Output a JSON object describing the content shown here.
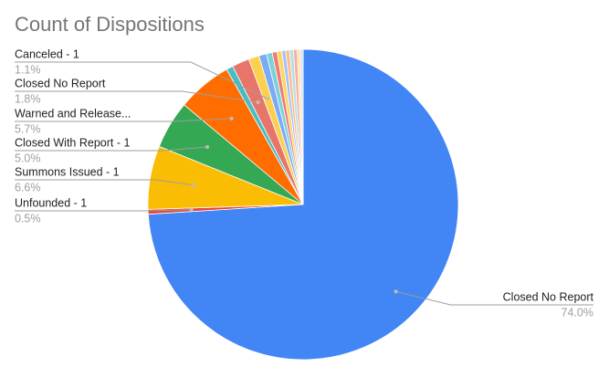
{
  "chart_data": {
    "type": "pie",
    "title": "Count of Dispositions",
    "categories": [
      "Closed No Report",
      "Unfounded - 1",
      "Summons Issued - 1",
      "Closed With Report - 1",
      "Warned and Release...",
      null,
      "Closed No Report",
      "Canceled - 1",
      null,
      null,
      null,
      null,
      null,
      null,
      null,
      null,
      null,
      null
    ],
    "values": [
      74.0,
      0.5,
      6.6,
      5.0,
      5.7,
      0.7,
      1.8,
      1.1,
      0.8,
      0.6,
      0.5,
      0.5,
      0.4,
      0.4,
      0.4,
      0.4,
      0.3,
      0.3
    ],
    "value_labels": [
      "74.0%",
      "0.5%",
      "6.6%",
      "5.0%",
      "5.7%",
      null,
      "1.8%",
      "1.1%",
      null,
      null,
      null,
      null,
      null,
      null,
      null,
      null,
      null,
      null
    ],
    "colors": [
      "#4285f4",
      "#ea4335",
      "#fbbc04",
      "#34a853",
      "#ff6d01",
      "#46bdc6",
      "#e8756a",
      "#fcd04f",
      "#7baaf7",
      "#7ed1d7",
      "#f07b72",
      "#fdd663",
      "#a1c2fa",
      "#ffbb8a",
      "#b3e0e3",
      "#f6aea9",
      "#fde49b",
      "#d0e0fc"
    ]
  }
}
